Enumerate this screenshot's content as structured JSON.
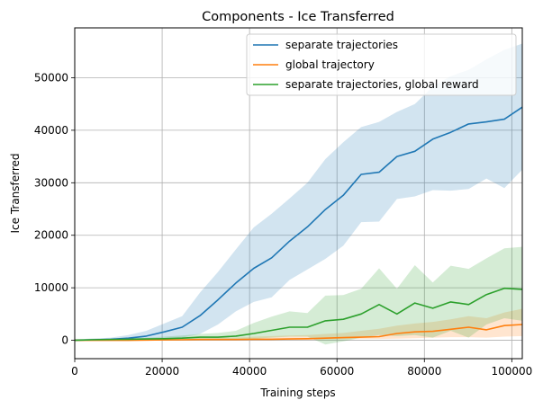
{
  "chart_data": {
    "type": "line",
    "title": "Components - Ice Transferred",
    "xlabel": "Training steps",
    "ylabel": "Ice Transferred",
    "xlim": [
      0,
      102400
    ],
    "ylim": [
      -3500,
      59500
    ],
    "xticks": [
      0,
      20000,
      40000,
      60000,
      80000,
      100000
    ],
    "yticks": [
      0,
      10000,
      20000,
      30000,
      40000,
      50000
    ],
    "grid": true,
    "legend_position": "top-right",
    "x": [
      0,
      4096,
      8192,
      12288,
      16384,
      20480,
      24576,
      28672,
      32768,
      36864,
      40960,
      45056,
      49152,
      53248,
      57344,
      61440,
      65536,
      69632,
      73728,
      77824,
      81920,
      86016,
      90112,
      94208,
      98304,
      102400
    ],
    "series": [
      {
        "name": "separate trajectories",
        "color": "#1f77b4",
        "band_color": "#1f77b4",
        "values": [
          0,
          100,
          200,
          400,
          800,
          1600,
          2500,
          4700,
          7700,
          10900,
          13700,
          15700,
          18900,
          21600,
          24900,
          27600,
          31600,
          32000,
          35000,
          36000,
          38300,
          39600,
          41200,
          41600,
          42100,
          44400
        ],
        "lower": [
          0,
          0,
          0,
          0,
          100,
          300,
          500,
          1200,
          3000,
          5500,
          7300,
          8200,
          11500,
          13500,
          15500,
          18000,
          22500,
          22600,
          26900,
          27400,
          28600,
          28500,
          28800,
          30800,
          29000,
          32500
        ],
        "upper": [
          200,
          300,
          500,
          1000,
          1800,
          3200,
          4600,
          9100,
          13000,
          17300,
          21500,
          24100,
          27000,
          30000,
          34500,
          37700,
          40600,
          41600,
          43500,
          45000,
          48300,
          50300,
          51500,
          53500,
          55300,
          56500
        ]
      },
      {
        "name": "global trajectory",
        "color": "#ff7f0e",
        "band_color": "#ff7f0e",
        "values": [
          0,
          0,
          0,
          0,
          50,
          80,
          100,
          150,
          150,
          150,
          200,
          200,
          250,
          300,
          400,
          500,
          600,
          700,
          1300,
          1600,
          1700,
          2100,
          2500,
          2000,
          2800,
          3000
        ],
        "lower": [
          0,
          0,
          0,
          0,
          0,
          0,
          0,
          0,
          0,
          0,
          50,
          50,
          80,
          100,
          150,
          200,
          250,
          250,
          300,
          400,
          500,
          600,
          600,
          500,
          700,
          800
        ],
        "upper": [
          50,
          50,
          50,
          100,
          150,
          250,
          400,
          500,
          500,
          500,
          700,
          800,
          900,
          1000,
          1200,
          1400,
          1800,
          2200,
          2800,
          3200,
          3500,
          4000,
          4600,
          4200,
          5300,
          6000
        ]
      },
      {
        "name": "separate trajectories, global reward",
        "color": "#2ca02c",
        "band_color": "#2ca02c",
        "values": [
          0,
          100,
          150,
          200,
          250,
          300,
          400,
          600,
          600,
          800,
          1300,
          1900,
          2500,
          2500,
          3700,
          4000,
          5000,
          6800,
          5000,
          7100,
          6100,
          7300,
          6800,
          8700,
          9900,
          9700
        ],
        "lower": [
          0,
          0,
          0,
          0,
          0,
          0,
          0,
          100,
          100,
          200,
          300,
          500,
          700,
          700,
          -800,
          -200,
          500,
          1000,
          800,
          1000,
          500,
          1800,
          500,
          3000,
          4200,
          3700
        ],
        "upper": [
          200,
          300,
          300,
          400,
          500,
          700,
          900,
          1200,
          1400,
          1800,
          3300,
          4500,
          5500,
          5200,
          8500,
          8600,
          9800,
          13700,
          9800,
          14300,
          11000,
          14200,
          13600,
          15600,
          17500,
          17800
        ]
      }
    ]
  }
}
